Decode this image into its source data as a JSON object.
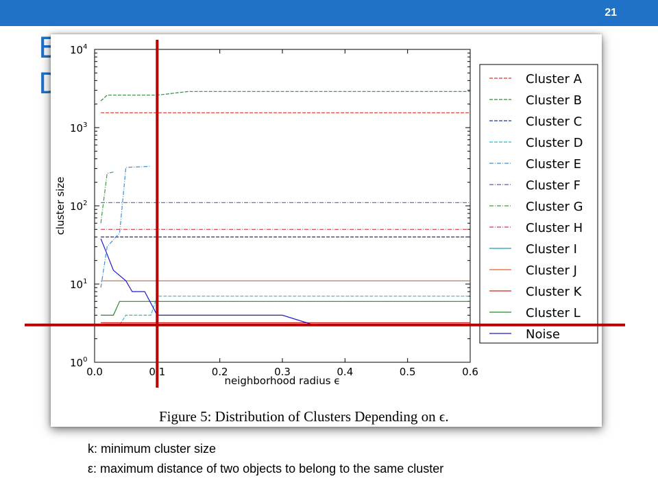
{
  "slide": {
    "number": "21",
    "heading_lines": [
      "E",
      "D"
    ]
  },
  "caption": "Figure 5:  Distribution of Clusters Depending on ϵ.",
  "footnotes": [
    "k: minimum cluster size",
    "ε: maximum distance of two objects to belong to the same cluster"
  ],
  "colors": {
    "accent": "#1f72c8",
    "marker": "#b50000"
  },
  "markers": {
    "epsilon_x": 0.1,
    "k_y": 3
  },
  "chart_data": {
    "type": "line",
    "xlabel": "neighborhood radius ϵ",
    "ylabel": "cluster size",
    "y_scale": "log",
    "xlim": [
      0.0,
      0.6
    ],
    "ylim": [
      1,
      10000
    ],
    "x_ticks": [
      "0.0",
      "0.1",
      "0.2",
      "0.3",
      "0.4",
      "0.5",
      "0.6"
    ],
    "y_ticks": [
      {
        "base": "10",
        "exp": "0"
      },
      {
        "base": "10",
        "exp": "1"
      },
      {
        "base": "10",
        "exp": "2"
      },
      {
        "base": "10",
        "exp": "3"
      },
      {
        "base": "10",
        "exp": "4"
      }
    ],
    "legend_position": "right",
    "series": [
      {
        "name": "Cluster A",
        "color": "#e0302a",
        "dash": "5,2",
        "points": [
          [
            0.01,
            1550
          ],
          [
            0.6,
            1550
          ]
        ]
      },
      {
        "name": "Cluster B",
        "color": "#2e8b3c",
        "dash": "5,2",
        "points": [
          [
            0.01,
            2200
          ],
          [
            0.02,
            2600
          ],
          [
            0.1,
            2600
          ],
          [
            0.15,
            2900
          ],
          [
            0.6,
            2900
          ]
        ]
      },
      {
        "name": "Cluster C",
        "color": "#1a2fa0",
        "dash": "5,2",
        "points": [
          [
            0.01,
            40
          ],
          [
            0.6,
            40
          ]
        ]
      },
      {
        "name": "Cluster D",
        "color": "#2bbbc0",
        "dash": "5,2",
        "points": [
          [
            0.01,
            3
          ],
          [
            0.04,
            3
          ],
          [
            0.05,
            4
          ],
          [
            0.09,
            4
          ],
          [
            0.1,
            7
          ],
          [
            0.6,
            7
          ]
        ]
      },
      {
        "name": "Cluster E",
        "color": "#3a8fd8",
        "dash": "6,2,1,2",
        "points": [
          [
            0.01,
            9
          ],
          [
            0.02,
            30
          ],
          [
            0.04,
            45
          ],
          [
            0.05,
            310
          ],
          [
            0.09,
            320
          ]
        ]
      },
      {
        "name": "Cluster F",
        "color": "#5a5ab5",
        "dash": "6,2,1,2",
        "points": [
          [
            0.01,
            110
          ],
          [
            0.6,
            110
          ]
        ]
      },
      {
        "name": "Cluster G",
        "color": "#3a9a3a",
        "dash": "6,2,1,2",
        "points": [
          [
            0.01,
            60
          ],
          [
            0.02,
            260
          ],
          [
            0.03,
            270
          ]
        ]
      },
      {
        "name": "Cluster H",
        "color": "#d23a50",
        "dash": "6,2,1,2",
        "points": [
          [
            0.01,
            50
          ],
          [
            0.6,
            50
          ]
        ]
      },
      {
        "name": "Cluster I",
        "color": "#1f9fb0",
        "dash": "",
        "points": [
          [
            0.01,
            3
          ],
          [
            0.6,
            3
          ]
        ]
      },
      {
        "name": "Cluster J",
        "color": "#e85a2a",
        "dash": "",
        "points": [
          [
            0.01,
            11
          ],
          [
            0.6,
            11
          ]
        ]
      },
      {
        "name": "Cluster K",
        "color": "#d42020",
        "dash": "",
        "points": [
          [
            0.01,
            3.2
          ],
          [
            0.6,
            3.2
          ]
        ]
      },
      {
        "name": "Cluster L",
        "color": "#228b22",
        "dash": "",
        "points": [
          [
            0.01,
            4
          ],
          [
            0.03,
            4
          ],
          [
            0.04,
            6
          ],
          [
            0.6,
            6
          ]
        ]
      },
      {
        "name": "Noise",
        "color": "#1a1ad0",
        "dash": "",
        "points": [
          [
            0.01,
            38
          ],
          [
            0.02,
            24
          ],
          [
            0.03,
            15
          ],
          [
            0.05,
            11
          ],
          [
            0.06,
            8
          ],
          [
            0.08,
            8
          ],
          [
            0.1,
            4
          ],
          [
            0.3,
            4
          ],
          [
            0.35,
            3
          ],
          [
            0.6,
            3
          ]
        ]
      }
    ]
  }
}
